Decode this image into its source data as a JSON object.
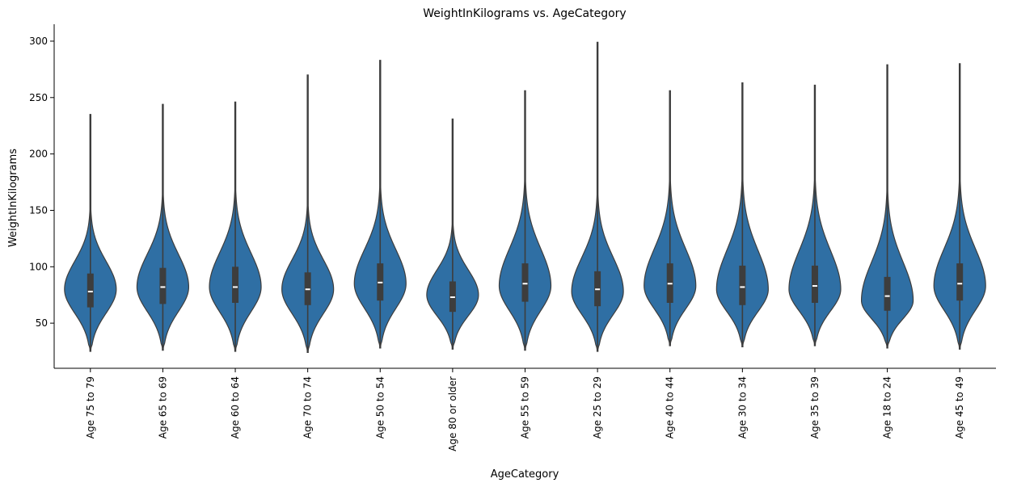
{
  "chart_data": {
    "type": "violin",
    "title": "WeightInKilograms vs. AgeCategory",
    "xlabel": "AgeCategory",
    "ylabel": "WeightInKilograms",
    "ylim": [
      10,
      315
    ],
    "yticks": [
      50,
      100,
      150,
      200,
      250,
      300
    ],
    "color": "#2f6fa4",
    "categories": [
      {
        "name": "Age 75 to 79",
        "min": 25,
        "q1": 64,
        "median": 78,
        "q3": 94,
        "max": 235,
        "mode": 80
      },
      {
        "name": "Age 65 to 69",
        "min": 26,
        "q1": 67,
        "median": 82,
        "q3": 99,
        "max": 244,
        "mode": 82
      },
      {
        "name": "Age 60 to 64",
        "min": 25,
        "q1": 68,
        "median": 82,
        "q3": 100,
        "max": 246,
        "mode": 82
      },
      {
        "name": "Age 70 to 74",
        "min": 24,
        "q1": 66,
        "median": 80,
        "q3": 95,
        "max": 270,
        "mode": 80
      },
      {
        "name": "Age 50 to 54",
        "min": 28,
        "q1": 70,
        "median": 86,
        "q3": 103,
        "max": 283,
        "mode": 85
      },
      {
        "name": "Age 80 or older",
        "min": 27,
        "q1": 60,
        "median": 73,
        "q3": 87,
        "max": 231,
        "mode": 75
      },
      {
        "name": "Age 55 to 59",
        "min": 26,
        "q1": 69,
        "median": 85,
        "q3": 103,
        "max": 256,
        "mode": 83
      },
      {
        "name": "Age 25 to 29",
        "min": 25,
        "q1": 65,
        "median": 80,
        "q3": 96,
        "max": 299,
        "mode": 78
      },
      {
        "name": "Age 40 to 44",
        "min": 30,
        "q1": 68,
        "median": 85,
        "q3": 103,
        "max": 256,
        "mode": 83
      },
      {
        "name": "Age 30 to 34",
        "min": 29,
        "q1": 66,
        "median": 82,
        "q3": 101,
        "max": 263,
        "mode": 80
      },
      {
        "name": "Age 35 to 39",
        "min": 30,
        "q1": 68,
        "median": 83,
        "q3": 101,
        "max": 261,
        "mode": 80
      },
      {
        "name": "Age 18 to 24",
        "min": 28,
        "q1": 61,
        "median": 74,
        "q3": 91,
        "max": 279,
        "mode": 70
      },
      {
        "name": "Age 45 to 49",
        "min": 27,
        "q1": 70,
        "median": 85,
        "q3": 103,
        "max": 280,
        "mode": 83
      }
    ]
  }
}
